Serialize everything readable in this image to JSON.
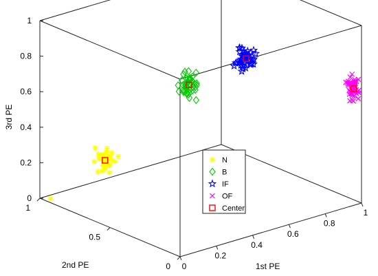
{
  "chart_data": {
    "type": "scatter",
    "dimensions": 3,
    "axes": {
      "x": {
        "label": "1st PE",
        "range": [
          0,
          1
        ],
        "ticks": [
          "0",
          "0.2",
          "0.4",
          "0.6",
          "0.8",
          "1"
        ]
      },
      "y": {
        "label": "2nd PE",
        "range": [
          0,
          1
        ],
        "ticks": [
          "0",
          "0.5",
          "1"
        ]
      },
      "z": {
        "label": "3rd PE",
        "range": [
          0,
          1
        ],
        "ticks": [
          "0",
          "0.2",
          "0.4",
          "0.6",
          "0.8",
          "1"
        ]
      }
    },
    "grid": false,
    "box": true,
    "legend": {
      "position": "lower-center",
      "entries": [
        "N",
        "B",
        "IF",
        "OF",
        "Center"
      ]
    },
    "series": [
      {
        "name": "N",
        "marker": "asterisk",
        "color": "#ffff00",
        "clusters_center": [
          0.05,
          0.6,
          0.33
        ],
        "cluster_spread": [
          0.05,
          0.09,
          0.1
        ],
        "count": 40
      },
      {
        "name": "B",
        "marker": "diamond",
        "color": "#00cc00",
        "clusters_center": [
          0.08,
          0.04,
          0.93
        ],
        "cluster_spread": [
          0.04,
          0.07,
          0.1
        ],
        "count": 45
      },
      {
        "name": "IF",
        "marker": "pentagram",
        "color": "#0000ff",
        "clusters_center": [
          0.92,
          0.72,
          0.6
        ],
        "cluster_spread": [
          0.04,
          0.08,
          0.1
        ],
        "count": 50
      },
      {
        "name": "OF",
        "marker": "x",
        "color": "#ff00ff",
        "clusters_center": [
          0.98,
          0.03,
          0.64
        ],
        "cluster_spread": [
          0.03,
          0.06,
          0.1
        ],
        "count": 45
      },
      {
        "name": "Center",
        "marker": "square",
        "color": "#ff0000",
        "points": [
          [
            0.05,
            0.6,
            0.33
          ],
          [
            0.08,
            0.04,
            0.93
          ],
          [
            0.92,
            0.72,
            0.6
          ],
          [
            0.98,
            0.03,
            0.64
          ]
        ]
      }
    ],
    "outliers": [
      {
        "series": "N",
        "point": [
          0.02,
          0.95,
          0.01
        ]
      }
    ]
  }
}
